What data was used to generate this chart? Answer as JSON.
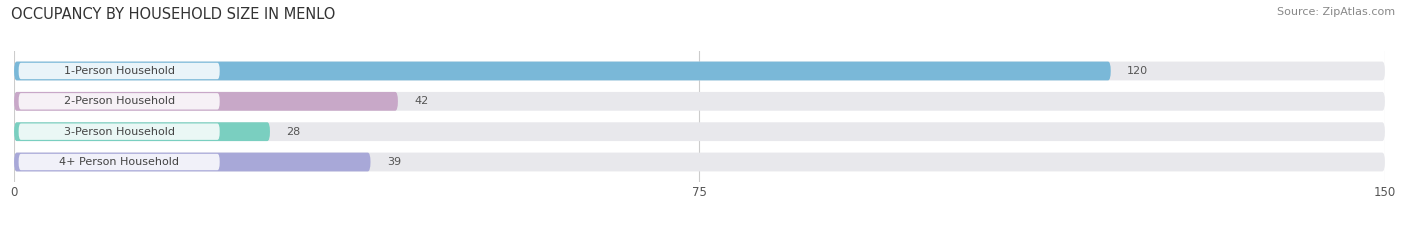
{
  "title": "OCCUPANCY BY HOUSEHOLD SIZE IN MENLO",
  "source": "Source: ZipAtlas.com",
  "categories": [
    "1-Person Household",
    "2-Person Household",
    "3-Person Household",
    "4+ Person Household"
  ],
  "values": [
    120,
    42,
    28,
    39
  ],
  "bar_colors": [
    "#7ab8d8",
    "#c8a8c8",
    "#7acfc0",
    "#a8a8d8"
  ],
  "xlim": [
    0,
    150
  ],
  "xticks": [
    0,
    75,
    150
  ],
  "background_color": "#ffffff",
  "bar_bg_color": "#e8e8ec",
  "title_fontsize": 10.5,
  "label_fontsize": 8,
  "value_fontsize": 8,
  "source_fontsize": 8
}
